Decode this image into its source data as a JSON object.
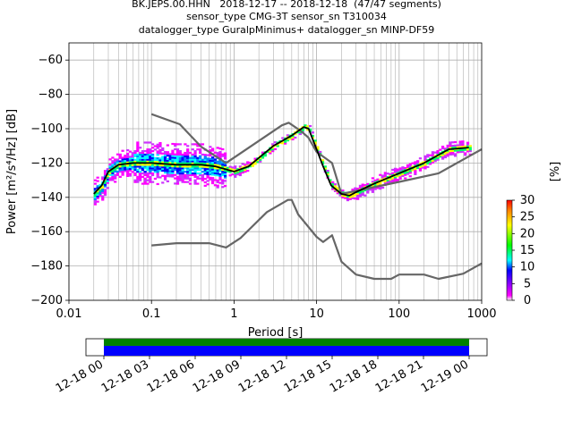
{
  "header": {
    "title_line1": "BK.JEPS.00.HHN   2018-12-17 -- 2018-12-18  (47/47 segments)",
    "title_line2": "sensor_type CMG-3T sensor_sn T310034",
    "title_line3": "datalogger_type GuralpMinimus+ datalogger_sn MINP-DF59"
  },
  "colors": {
    "noise_model": "#666666",
    "mode_line": "#000000",
    "coverage_green": "#008000",
    "coverage_blue": "#0000ff"
  },
  "chart_data": {
    "type": "heatmap",
    "xlabel": "Period [s]",
    "ylabel": "Power [m²/s⁴/Hz] [dB]",
    "x_scale": "log",
    "xlim": [
      0.01,
      1000
    ],
    "ylim": [
      -200,
      -50
    ],
    "x_ticks": [
      0.01,
      0.1,
      1,
      10,
      100,
      1000
    ],
    "x_tick_labels": [
      "0.01",
      "0.1",
      "1",
      "10",
      "100",
      "1000"
    ],
    "y_ticks": [
      -200,
      -180,
      -160,
      -140,
      -120,
      -100,
      -80,
      -60
    ],
    "y_tick_labels": [
      "−200",
      "−180",
      "−160",
      "−140",
      "−120",
      "−100",
      "−80",
      "−60"
    ],
    "grid": true,
    "colorbar": {
      "label": "[%]",
      "range": [
        0,
        30
      ],
      "ticks": [
        0,
        5,
        10,
        15,
        20,
        25,
        30
      ]
    },
    "series": [
      {
        "x": [
          0.1,
          0.22,
          0.4,
          0.8,
          3.8,
          4.6,
          6.3,
          7.9,
          10,
          15.4,
          20,
          100,
          300,
          1000
        ],
        "y": [
          -91.5,
          -97.4,
          -110.5,
          -120.0,
          -98.0,
          -96.5,
          -101.0,
          -105.0,
          -113.5,
          -120.0,
          -138.0,
          -131.0,
          -126.0,
          -112.0
        ]
      },
      {
        "x": [
          0.1,
          0.2,
          0.5,
          0.8,
          1.2,
          2.5,
          4.5,
          5.0,
          6.0,
          10,
          12,
          15.4,
          20,
          30,
          50,
          80,
          100,
          200,
          300,
          600,
          1000
        ],
        "y": [
          -168.0,
          -166.7,
          -166.7,
          -169.2,
          -163.7,
          -148.6,
          -141.5,
          -141.5,
          -150.0,
          -163.0,
          -166.0,
          -162.1,
          -177.5,
          -185.0,
          -187.5,
          -187.5,
          -185.0,
          -185.0,
          -187.5,
          -184.5,
          -178.5
        ]
      },
      {
        "x": [
          0.02,
          0.025,
          0.03,
          0.04,
          0.06,
          0.1,
          0.2,
          0.4,
          0.6,
          1.0,
          1.5,
          3.0,
          5.0,
          7.0,
          8.0,
          10,
          12,
          15,
          20,
          25,
          30,
          50,
          100,
          200,
          400,
          700
        ],
        "y": [
          -138,
          -133,
          -125,
          -121,
          -120,
          -120,
          -121,
          -121,
          -122,
          -125,
          -122,
          -110,
          -104,
          -99,
          -100,
          -112,
          -122,
          -133,
          -138,
          -139,
          -137,
          -132,
          -126,
          -120,
          -112,
          -111
        ]
      }
    ],
    "time_axis": {
      "ticks": [
        "12-18 00",
        "12-18 03",
        "12-18 06",
        "12-18 09",
        "12-18 12",
        "12-18 15",
        "12-18 18",
        "12-18 21",
        "12-19 00"
      ]
    }
  }
}
